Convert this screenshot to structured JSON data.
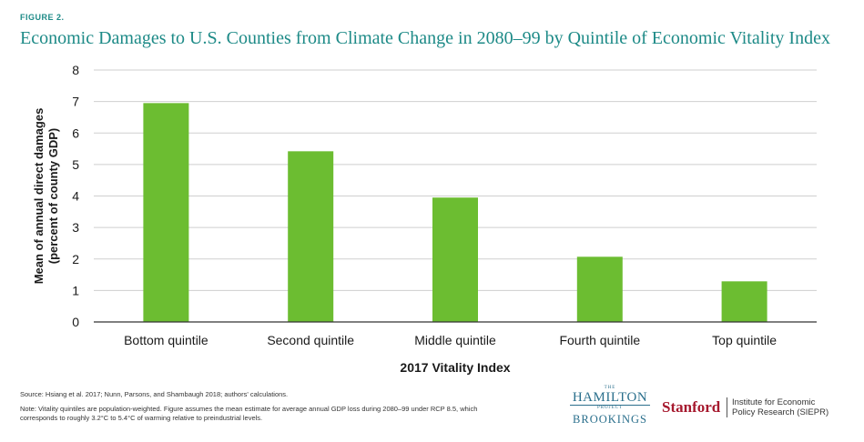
{
  "figure_label": "FIGURE 2.",
  "title": "Economic Damages to U.S. Counties from Climate Change in 2080–99 by Quintile of Economic Vitality Index",
  "source": "Source: Hsiang et al. 2017; Nunn, Parsons, and Shambaugh 2018; authors' calculations.",
  "note": "Note: Vitality quintiles are population-weighted. Figure assumes the mean estimate for average annual GDP loss during 2080–99 under RCP 8.5, which corresponds to roughly 3.2°C to 5.4°C of warming relative to preindustrial levels.",
  "logos": {
    "hamilton_the": "THE",
    "hamilton_name": "HAMILTON",
    "hamilton_project": "PROJECT",
    "brookings": "BROOKINGS",
    "stanford": "Stanford",
    "siepr_line1": "Institute for Economic",
    "siepr_line2": "Policy Research (SIEPR)"
  },
  "colors": {
    "bar": "#6cbd31",
    "title": "#1d8a87",
    "grid": "#cfcfcf",
    "axis": "#333333"
  },
  "chart_data": {
    "type": "bar",
    "categories": [
      "Bottom quintile",
      "Second quintile",
      "Middle quintile",
      "Fourth quintile",
      "Top quintile"
    ],
    "values": [
      6.95,
      5.42,
      3.95,
      2.07,
      1.29
    ],
    "xlabel": "2017 Vitality Index",
    "ylabel_line1": "Mean of annual direct damages",
    "ylabel_line2": "(percent of county GDP)",
    "ylim": [
      0,
      8
    ],
    "yticks": [
      0,
      1,
      2,
      3,
      4,
      5,
      6,
      7,
      8
    ],
    "grid": true
  }
}
